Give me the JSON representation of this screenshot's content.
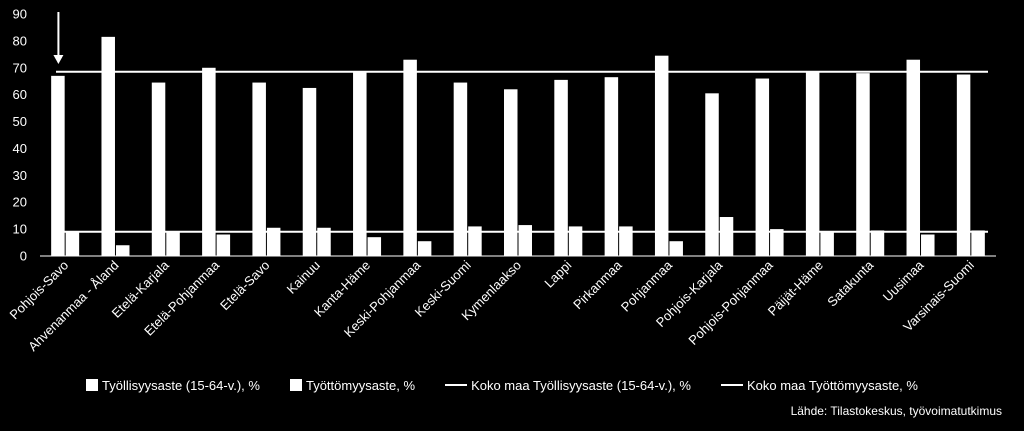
{
  "chart_data": {
    "type": "bar",
    "categories": [
      "Pohjois-Savo",
      "Ahvenanmaa - Åland",
      "Etelä-Karjala",
      "Etelä-Pohjanmaa",
      "Etelä-Savo",
      "Kainuu",
      "Kanta-Häme",
      "Keski-Pohjanmaa",
      "Keski-Suomi",
      "Kymenlaakso",
      "Lappi",
      "Pirkanmaa",
      "Pohjanmaa",
      "Pohjois-Karjala",
      "Pohjois-Pohjanmaa",
      "Päijät-Häme",
      "Satakunta",
      "Uusimaa",
      "Varsinais-Suomi"
    ],
    "series": [
      {
        "name": "Työllisyysaste (15-64-v.), %",
        "values": [
          67,
          81.5,
          64.5,
          70,
          64.5,
          62.5,
          68.5,
          73,
          64.5,
          62,
          65.5,
          66.5,
          74.5,
          60.5,
          66,
          68.5,
          68,
          73,
          67.5
        ]
      },
      {
        "name": "Työttömyysaste, %",
        "values": [
          9,
          4,
          9,
          8,
          10.5,
          10.5,
          7,
          5.5,
          11,
          11.5,
          11,
          11,
          5.5,
          14.5,
          10,
          9,
          9.5,
          8,
          9.5
        ]
      }
    ],
    "reference_lines": [
      {
        "name": "Koko maa Työllisyysaste (15-64-v.), %",
        "value": 68.5
      },
      {
        "name": "Koko maa Työttömyysaste, %",
        "value": 9
      }
    ],
    "ylim": [
      0,
      90
    ],
    "yticks": [
      0,
      10,
      20,
      30,
      40,
      50,
      60,
      70,
      80,
      90
    ],
    "grid": false,
    "legend_position": "bottom",
    "source": "Lähde: Tilastokeskus, työvoimatutkimus",
    "colors": {
      "background": "#000000",
      "bars": "#ffffff",
      "lines": "#ffffff"
    }
  }
}
